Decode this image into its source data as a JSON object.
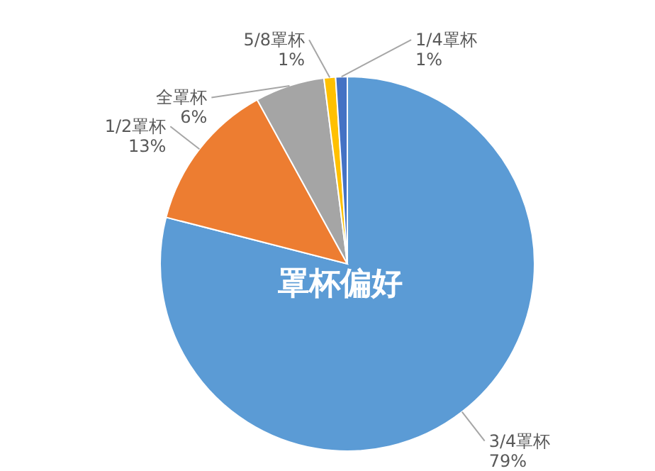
{
  "chart_data": {
    "type": "pie",
    "title": "罩杯偏好",
    "categories": [
      "3/4罩杯",
      "1/2罩杯",
      "全罩杯",
      "5/8罩杯",
      "1/4罩杯"
    ],
    "values": [
      79,
      13,
      6,
      1,
      1
    ],
    "value_labels": [
      "79%",
      "13%",
      "6%",
      "1%",
      "1%"
    ],
    "colors": [
      "#5b9bd5",
      "#ed7d31",
      "#a5a5a5",
      "#ffc000",
      "#4472c4"
    ]
  }
}
